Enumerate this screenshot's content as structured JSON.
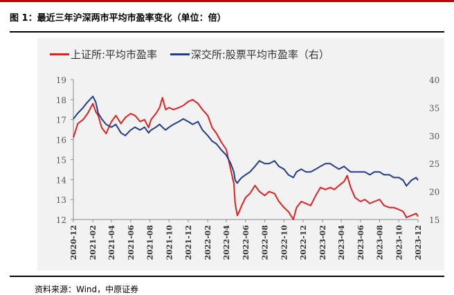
{
  "header": {
    "title": "图 1：最近三年沪深两市平均市盈率变化（单位：倍）",
    "source": "资料来源：Wind，中原证券"
  },
  "colors": {
    "series_sh": "#e02020",
    "series_sz": "#1f3c88",
    "accent": "#c00000"
  },
  "chart_data": {
    "type": "line",
    "x_ticks": [
      "2020-12",
      "2021-02",
      "2021-04",
      "2021-06",
      "2021-08",
      "2021-10",
      "2021-12",
      "2022-02",
      "2022-04",
      "2022-06",
      "2022-08",
      "2022-10",
      "2022-12",
      "2023-02",
      "2023-04",
      "2023-06",
      "2023-08",
      "2023-10",
      "2023-12"
    ],
    "y_left": {
      "min": 12,
      "max": 19,
      "ticks": [
        "19",
        "18",
        "17",
        "16",
        "15",
        "14",
        "13",
        "12"
      ]
    },
    "y_right": {
      "min": 15,
      "max": 40,
      "ticks": [
        "40",
        "35",
        "30",
        "25",
        "20",
        "15"
      ]
    },
    "legend": "top",
    "series": [
      {
        "name": "上证所:平均市盈率",
        "axis": "left",
        "color": "#e02020",
        "points": [
          [
            "2020-12-01",
            16.1
          ],
          [
            "2020-12-15",
            16.8
          ],
          [
            "2021-01-01",
            17.0
          ],
          [
            "2021-01-15",
            17.3
          ],
          [
            "2021-02-01",
            17.8
          ],
          [
            "2021-02-10",
            17.4
          ],
          [
            "2021-02-18",
            17.2
          ],
          [
            "2021-03-01",
            16.6
          ],
          [
            "2021-03-15",
            16.3
          ],
          [
            "2021-04-01",
            16.9
          ],
          [
            "2021-04-15",
            17.2
          ],
          [
            "2021-05-01",
            16.8
          ],
          [
            "2021-05-15",
            17.1
          ],
          [
            "2021-06-01",
            17.3
          ],
          [
            "2021-06-15",
            17.2
          ],
          [
            "2021-07-01",
            16.9
          ],
          [
            "2021-07-15",
            17.0
          ],
          [
            "2021-07-28",
            16.6
          ],
          [
            "2021-08-05",
            17.0
          ],
          [
            "2021-08-20",
            17.3
          ],
          [
            "2021-09-01",
            17.6
          ],
          [
            "2021-09-10",
            18.1
          ],
          [
            "2021-09-20",
            17.5
          ],
          [
            "2021-10-01",
            17.6
          ],
          [
            "2021-10-15",
            17.5
          ],
          [
            "2021-11-01",
            17.6
          ],
          [
            "2021-11-15",
            17.7
          ],
          [
            "2021-12-01",
            17.9
          ],
          [
            "2021-12-15",
            18.0
          ],
          [
            "2022-01-01",
            17.8
          ],
          [
            "2022-01-15",
            17.5
          ],
          [
            "2022-02-01",
            17.2
          ],
          [
            "2022-02-15",
            16.6
          ],
          [
            "2022-03-01",
            16.3
          ],
          [
            "2022-03-15",
            15.9
          ],
          [
            "2022-04-01",
            15.5
          ],
          [
            "2022-04-15",
            14.5
          ],
          [
            "2022-04-25",
            13.8
          ],
          [
            "2022-04-29",
            12.8
          ],
          [
            "2022-05-06",
            12.2
          ],
          [
            "2022-05-12",
            12.4
          ],
          [
            "2022-05-20",
            12.7
          ],
          [
            "2022-06-01",
            13.1
          ],
          [
            "2022-06-15",
            13.3
          ],
          [
            "2022-07-01",
            13.7
          ],
          [
            "2022-07-15",
            13.4
          ],
          [
            "2022-08-01",
            13.2
          ],
          [
            "2022-08-15",
            13.4
          ],
          [
            "2022-09-01",
            13.3
          ],
          [
            "2022-09-15",
            12.9
          ],
          [
            "2022-10-01",
            12.6
          ],
          [
            "2022-10-15",
            12.4
          ],
          [
            "2022-10-31",
            12.0
          ],
          [
            "2022-11-10",
            12.6
          ],
          [
            "2022-11-25",
            12.9
          ],
          [
            "2022-12-10",
            12.8
          ],
          [
            "2022-12-25",
            12.7
          ],
          [
            "2023-01-10",
            13.2
          ],
          [
            "2023-01-25",
            13.6
          ],
          [
            "2023-02-10",
            13.5
          ],
          [
            "2023-02-25",
            13.6
          ],
          [
            "2023-03-10",
            13.5
          ],
          [
            "2023-03-25",
            13.7
          ],
          [
            "2023-04-10",
            13.9
          ],
          [
            "2023-04-20",
            14.2
          ],
          [
            "2023-05-01",
            13.6
          ],
          [
            "2023-05-15",
            13.1
          ],
          [
            "2023-06-01",
            12.9
          ],
          [
            "2023-06-15",
            13.0
          ],
          [
            "2023-07-01",
            12.8
          ],
          [
            "2023-07-15",
            12.9
          ],
          [
            "2023-08-01",
            13.0
          ],
          [
            "2023-08-15",
            12.7
          ],
          [
            "2023-09-01",
            12.6
          ],
          [
            "2023-09-15",
            12.6
          ],
          [
            "2023-10-01",
            12.5
          ],
          [
            "2023-10-15",
            12.4
          ],
          [
            "2023-10-25",
            12.1
          ],
          [
            "2023-11-10",
            12.2
          ],
          [
            "2023-11-25",
            12.3
          ],
          [
            "2023-12-01",
            12.15
          ]
        ]
      },
      {
        "name": "深交所:股票平均市盈率（右）",
        "axis": "right",
        "color": "#1f3c88",
        "points": [
          [
            "2020-12-01",
            33.0
          ],
          [
            "2020-12-15",
            34.0
          ],
          [
            "2021-01-01",
            35.0
          ],
          [
            "2021-01-15",
            36.0
          ],
          [
            "2021-02-01",
            37.0
          ],
          [
            "2021-02-10",
            36.0
          ],
          [
            "2021-02-18",
            34.0
          ],
          [
            "2021-03-01",
            33.0
          ],
          [
            "2021-03-15",
            32.0
          ],
          [
            "2021-04-01",
            31.5
          ],
          [
            "2021-04-15",
            32.0
          ],
          [
            "2021-05-01",
            30.5
          ],
          [
            "2021-05-15",
            30.0
          ],
          [
            "2021-06-01",
            31.0
          ],
          [
            "2021-06-15",
            31.5
          ],
          [
            "2021-07-01",
            31.0
          ],
          [
            "2021-07-15",
            31.5
          ],
          [
            "2021-07-28",
            30.5
          ],
          [
            "2021-08-05",
            31.0
          ],
          [
            "2021-08-20",
            31.5
          ],
          [
            "2021-09-01",
            32.0
          ],
          [
            "2021-09-10",
            31.5
          ],
          [
            "2021-09-20",
            31.0
          ],
          [
            "2021-10-01",
            31.5
          ],
          [
            "2021-10-15",
            32.0
          ],
          [
            "2021-11-01",
            32.5
          ],
          [
            "2021-11-15",
            33.0
          ],
          [
            "2021-12-01",
            32.5
          ],
          [
            "2021-12-15",
            32.0
          ],
          [
            "2022-01-01",
            32.5
          ],
          [
            "2022-01-15",
            31.0
          ],
          [
            "2022-02-01",
            30.0
          ],
          [
            "2022-02-15",
            29.0
          ],
          [
            "2022-03-01",
            28.5
          ],
          [
            "2022-03-15",
            27.5
          ],
          [
            "2022-04-01",
            26.5
          ],
          [
            "2022-04-15",
            25.0
          ],
          [
            "2022-04-25",
            23.5
          ],
          [
            "2022-04-29",
            22.0
          ],
          [
            "2022-05-06",
            21.5
          ],
          [
            "2022-05-12",
            22.0
          ],
          [
            "2022-05-20",
            22.5
          ],
          [
            "2022-06-01",
            23.0
          ],
          [
            "2022-06-15",
            23.5
          ],
          [
            "2022-07-01",
            24.5
          ],
          [
            "2022-07-15",
            25.5
          ],
          [
            "2022-08-01",
            25.0
          ],
          [
            "2022-08-15",
            25.0
          ],
          [
            "2022-09-01",
            25.5
          ],
          [
            "2022-09-15",
            24.5
          ],
          [
            "2022-10-01",
            24.0
          ],
          [
            "2022-10-15",
            23.0
          ],
          [
            "2022-10-31",
            22.5
          ],
          [
            "2022-11-10",
            23.5
          ],
          [
            "2022-11-25",
            24.0
          ],
          [
            "2022-12-10",
            23.5
          ],
          [
            "2022-12-25",
            23.5
          ],
          [
            "2023-01-10",
            24.0
          ],
          [
            "2023-01-25",
            24.5
          ],
          [
            "2023-02-10",
            25.0
          ],
          [
            "2023-02-25",
            25.0
          ],
          [
            "2023-03-10",
            24.5
          ],
          [
            "2023-03-25",
            24.0
          ],
          [
            "2023-04-10",
            24.5
          ],
          [
            "2023-04-20",
            24.0
          ],
          [
            "2023-05-01",
            23.5
          ],
          [
            "2023-05-15",
            23.5
          ],
          [
            "2023-06-01",
            23.5
          ],
          [
            "2023-06-15",
            23.5
          ],
          [
            "2023-07-01",
            23.0
          ],
          [
            "2023-07-15",
            23.5
          ],
          [
            "2023-08-01",
            23.5
          ],
          [
            "2023-08-15",
            23.0
          ],
          [
            "2023-09-01",
            23.0
          ],
          [
            "2023-09-15",
            22.5
          ],
          [
            "2023-10-01",
            22.5
          ],
          [
            "2023-10-15",
            22.0
          ],
          [
            "2023-10-25",
            21.0
          ],
          [
            "2023-11-10",
            22.0
          ],
          [
            "2023-11-25",
            22.5
          ],
          [
            "2023-12-01",
            22.0
          ]
        ]
      }
    ]
  }
}
